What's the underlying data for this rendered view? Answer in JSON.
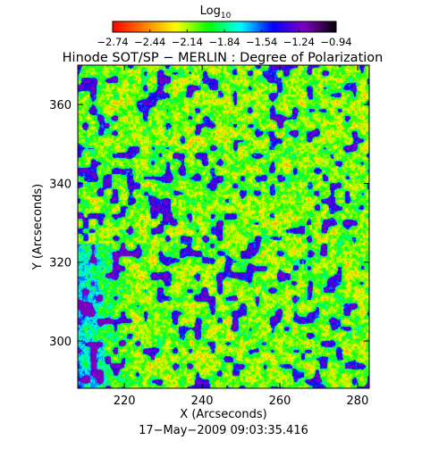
{
  "chart_data": {
    "type": "heatmap",
    "title": "Hinode SOT/SP − MERLIN : Degree of Polarization",
    "xlabel": "X (Arcseconds)",
    "ylabel": "Y (Arcseconds)",
    "footer": "17−May−2009 09:03:35.416",
    "xlim": [
      208,
      283
    ],
    "ylim": [
      288,
      370
    ],
    "x_ticks": [
      220,
      240,
      260,
      280
    ],
    "y_ticks": [
      300,
      320,
      340,
      360
    ],
    "x_tick_labels": [
      "220",
      "240",
      "260",
      "280"
    ],
    "y_tick_labels": [
      "300",
      "320",
      "340",
      "360"
    ],
    "colorbar": {
      "title": "Log",
      "title_sub": "10",
      "range": [
        -2.74,
        -0.94
      ],
      "ticks": [
        -2.74,
        -2.44,
        -2.14,
        -1.84,
        -1.54,
        -1.24,
        -0.94
      ],
      "tick_labels": [
        "−2.74",
        "−2.44",
        "−2.14",
        "−1.84",
        "−1.54",
        "−1.24",
        "−0.94"
      ],
      "colors": [
        "#ff0000",
        "#ff7f00",
        "#ffff00",
        "#00ff00",
        "#00ffff",
        "#0000ff",
        "#8000c0",
        "#000000"
      ]
    }
  }
}
